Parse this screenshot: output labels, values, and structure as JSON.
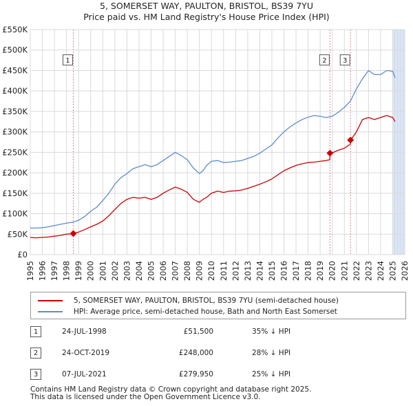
{
  "title": {
    "line1": "5, SOMERSET WAY, PAULTON, BRISTOL, BS39 7YU",
    "line2": "Price paid vs. HM Land Registry's House Price Index (HPI)"
  },
  "colors": {
    "property": "#cc0000",
    "hpi": "#5b8bd0",
    "marker": "#cc0000",
    "vline": "#e08080",
    "shade": "#dde6f5",
    "grid": "#d9d9d9"
  },
  "legend": {
    "property": "5, SOMERSET WAY, PAULTON, BRISTOL, BS39 7YU (semi-detached house)",
    "hpi": "HPI: Average price, semi-detached house, Bath and North East Somerset"
  },
  "sales": [
    {
      "num": "1",
      "date": "24-JUL-1998",
      "price": "£51,500",
      "hpi": "35% ↓ HPI"
    },
    {
      "num": "2",
      "date": "24-OCT-2019",
      "price": "£248,000",
      "hpi": "28% ↓ HPI"
    },
    {
      "num": "3",
      "date": "07-JUL-2021",
      "price": "£279,950",
      "hpi": "25% ↓ HPI"
    }
  ],
  "footer": {
    "line1": "Contains HM Land Registry data © Crown copyright and database right 2025.",
    "line2": "This data is licensed under the Open Government Licence v3.0."
  },
  "chart_data": {
    "type": "line",
    "title": "5, SOMERSET WAY, PAULTON, BRISTOL, BS39 7YU - Price paid vs. HM Land Registry's House Price Index (HPI)",
    "xlabel": "",
    "ylabel": "",
    "xlim": [
      1995,
      2026
    ],
    "ylim": [
      0,
      550000
    ],
    "x_ticks": [
      1995,
      1996,
      1997,
      1998,
      1999,
      2000,
      2001,
      2002,
      2003,
      2004,
      2005,
      2006,
      2007,
      2008,
      2009,
      2010,
      2011,
      2012,
      2013,
      2014,
      2015,
      2016,
      2017,
      2018,
      2019,
      2020,
      2021,
      2022,
      2023,
      2024,
      2025,
      2026
    ],
    "y_ticks": [
      0,
      50000,
      100000,
      150000,
      200000,
      250000,
      300000,
      350000,
      400000,
      450000,
      500000,
      550000
    ],
    "y_tick_labels": [
      "£0",
      "£50K",
      "£100K",
      "£150K",
      "£200K",
      "£250K",
      "£300K",
      "£350K",
      "£400K",
      "£450K",
      "£500K",
      "£550K"
    ],
    "forecast_start": 2025.0,
    "grid": true,
    "series": [
      {
        "name": "5, SOMERSET WAY, PAULTON, BRISTOL, BS39 7YU (semi-detached house)",
        "x": [
          1995.0,
          1995.5,
          1996.0,
          1996.5,
          1997.0,
          1997.5,
          1998.0,
          1998.56,
          1998.58,
          1999.0,
          1999.5,
          2000.0,
          2000.5,
          2001.0,
          2001.5,
          2002.0,
          2002.5,
          2003.0,
          2003.5,
          2004.0,
          2004.5,
          2005.0,
          2005.5,
          2006.0,
          2006.5,
          2007.0,
          2007.5,
          2008.0,
          2008.5,
          2009.0,
          2009.3,
          2009.6,
          2010.0,
          2010.5,
          2011.0,
          2011.5,
          2012.0,
          2012.5,
          2013.0,
          2013.5,
          2014.0,
          2014.5,
          2015.0,
          2015.5,
          2016.0,
          2016.5,
          2017.0,
          2017.5,
          2018.0,
          2018.5,
          2019.0,
          2019.5,
          2019.8,
          2019.82,
          2020.0,
          2020.5,
          2021.0,
          2021.5,
          2021.52,
          2022.0,
          2022.5,
          2023.0,
          2023.5,
          2024.0,
          2024.5,
          2025.0,
          2025.2
        ],
        "values": [
          42000,
          41000,
          42000,
          43000,
          45000,
          47000,
          50000,
          51300,
          51500,
          55000,
          61000,
          68000,
          74000,
          82000,
          95000,
          110000,
          125000,
          135000,
          140000,
          138000,
          140000,
          135000,
          140000,
          150000,
          158000,
          165000,
          160000,
          152000,
          135000,
          128000,
          135000,
          140000,
          150000,
          155000,
          152000,
          155000,
          156000,
          158000,
          162000,
          167000,
          172000,
          178000,
          185000,
          195000,
          205000,
          212000,
          218000,
          222000,
          225000,
          226000,
          228000,
          230000,
          232000,
          248000,
          249000,
          255000,
          260000,
          270000,
          279950,
          300000,
          330000,
          335000,
          330000,
          335000,
          340000,
          335000,
          325000
        ]
      },
      {
        "name": "HPI: Average price, semi-detached house, Bath and North East Somerset",
        "x": [
          1995.0,
          1995.5,
          1996.0,
          1996.5,
          1997.0,
          1997.5,
          1998.0,
          1998.5,
          1999.0,
          1999.5,
          2000.0,
          2000.5,
          2001.0,
          2001.5,
          2002.0,
          2002.5,
          2003.0,
          2003.5,
          2004.0,
          2004.5,
          2005.0,
          2005.5,
          2006.0,
          2006.5,
          2007.0,
          2007.5,
          2008.0,
          2008.5,
          2009.0,
          2009.3,
          2009.6,
          2010.0,
          2010.5,
          2011.0,
          2011.5,
          2012.0,
          2012.5,
          2013.0,
          2013.5,
          2014.0,
          2014.5,
          2015.0,
          2015.5,
          2016.0,
          2016.5,
          2017.0,
          2017.5,
          2018.0,
          2018.5,
          2019.0,
          2019.5,
          2020.0,
          2020.5,
          2021.0,
          2021.5,
          2022.0,
          2022.5,
          2023.0,
          2023.5,
          2024.0,
          2024.5,
          2025.0,
          2025.2
        ],
        "values": [
          65000,
          65000,
          66000,
          68000,
          71000,
          74000,
          77000,
          79000,
          84000,
          93000,
          106000,
          116000,
          132000,
          150000,
          172000,
          188000,
          198000,
          210000,
          215000,
          220000,
          215000,
          220000,
          230000,
          240000,
          250000,
          242000,
          232000,
          212000,
          198000,
          205000,
          218000,
          228000,
          230000,
          225000,
          226000,
          228000,
          230000,
          235000,
          240000,
          248000,
          258000,
          268000,
          285000,
          300000,
          312000,
          322000,
          330000,
          336000,
          340000,
          338000,
          335000,
          338000,
          348000,
          360000,
          375000,
          405000,
          430000,
          450000,
          440000,
          440000,
          450000,
          448000,
          432000
        ]
      }
    ],
    "sale_markers": [
      {
        "label": "1",
        "x": 1998.56,
        "value": 51500
      },
      {
        "label": "2",
        "x": 2019.81,
        "value": 248000
      },
      {
        "label": "3",
        "x": 2021.51,
        "value": 279950
      }
    ]
  }
}
